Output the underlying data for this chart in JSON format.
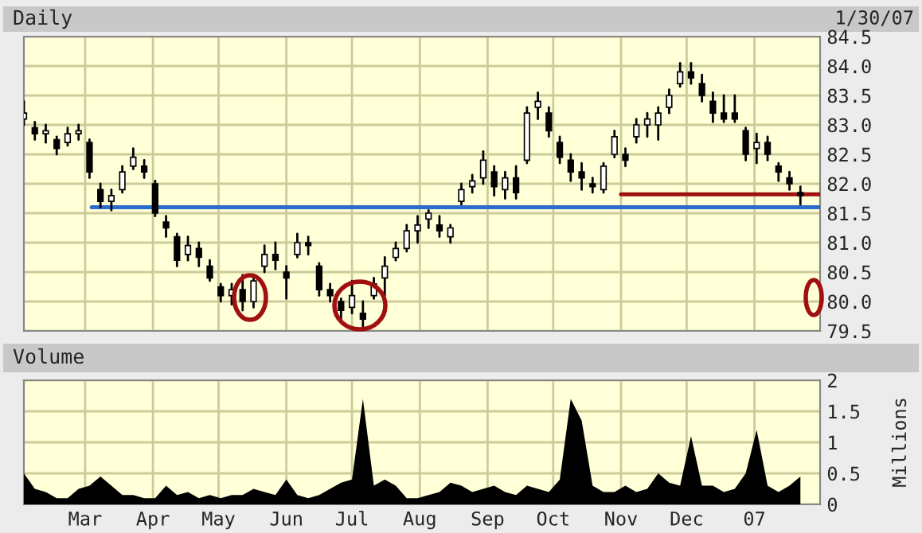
{
  "chart_data": [
    {
      "type": "candlestick",
      "title": "Daily",
      "annotations": [
        "1/30/07"
      ],
      "x": [
        "2006-02-01",
        "2006-02-06",
        "2006-02-11",
        "2006-02-16",
        "2006-02-21",
        "2006-02-26",
        "2006-03-03",
        "2006-03-08",
        "2006-03-13",
        "2006-03-18",
        "2006-03-23",
        "2006-03-28",
        "2006-04-02",
        "2006-04-07",
        "2006-04-12",
        "2006-04-17",
        "2006-04-22",
        "2006-04-27",
        "2006-05-02",
        "2006-05-07",
        "2006-05-12",
        "2006-05-17",
        "2006-05-22",
        "2006-05-27",
        "2006-06-01",
        "2006-06-06",
        "2006-06-11",
        "2006-06-16",
        "2006-06-21",
        "2006-06-26",
        "2006-07-01",
        "2006-07-06",
        "2006-07-11",
        "2006-07-16",
        "2006-07-21",
        "2006-07-26",
        "2006-07-31",
        "2006-08-05",
        "2006-08-10",
        "2006-08-15",
        "2006-08-20",
        "2006-08-25",
        "2006-08-30",
        "2006-09-04",
        "2006-09-09",
        "2006-09-14",
        "2006-09-19",
        "2006-09-24",
        "2006-09-29",
        "2006-10-04",
        "2006-10-09",
        "2006-10-14",
        "2006-10-19",
        "2006-10-24",
        "2006-10-29",
        "2006-11-03",
        "2006-11-08",
        "2006-11-13",
        "2006-11-18",
        "2006-11-23",
        "2006-11-28",
        "2006-12-03",
        "2006-12-08",
        "2006-12-13",
        "2006-12-18",
        "2006-12-23",
        "2006-12-28",
        "2007-01-02",
        "2007-01-07",
        "2007-01-12",
        "2007-01-17",
        "2007-01-22"
      ],
      "ohlc": [
        [
          83.1,
          83.4,
          83.0,
          83.2
        ],
        [
          82.95,
          83.05,
          82.75,
          82.85
        ],
        [
          82.85,
          83.0,
          82.7,
          82.9
        ],
        [
          82.75,
          82.8,
          82.5,
          82.6
        ],
        [
          82.7,
          82.95,
          82.65,
          82.85
        ],
        [
          82.85,
          83.0,
          82.75,
          82.9
        ],
        [
          82.7,
          82.75,
          82.1,
          82.2
        ],
        [
          81.9,
          82.0,
          81.6,
          81.7
        ],
        [
          81.7,
          81.9,
          81.55,
          81.8
        ],
        [
          81.9,
          82.3,
          81.85,
          82.2
        ],
        [
          82.3,
          82.6,
          82.25,
          82.45
        ],
        [
          82.3,
          82.4,
          82.1,
          82.2
        ],
        [
          82.0,
          82.05,
          81.45,
          81.5
        ],
        [
          81.35,
          81.45,
          81.1,
          81.25
        ],
        [
          81.1,
          81.15,
          80.6,
          80.7
        ],
        [
          80.8,
          81.1,
          80.7,
          80.95
        ],
        [
          80.9,
          81.0,
          80.6,
          80.75
        ],
        [
          80.6,
          80.7,
          80.35,
          80.4
        ],
        [
          80.25,
          80.3,
          80.0,
          80.1
        ],
        [
          80.1,
          80.3,
          79.95,
          80.2
        ],
        [
          80.2,
          80.45,
          79.85,
          80.0
        ],
        [
          80.0,
          80.45,
          79.9,
          80.35
        ],
        [
          80.6,
          80.95,
          80.5,
          80.8
        ],
        [
          80.8,
          81.0,
          80.55,
          80.7
        ],
        [
          80.5,
          80.6,
          80.05,
          80.4
        ],
        [
          80.8,
          81.15,
          80.75,
          81.0
        ],
        [
          81.0,
          81.1,
          80.8,
          80.95
        ],
        [
          80.6,
          80.65,
          80.1,
          80.2
        ],
        [
          80.2,
          80.3,
          80.0,
          80.1
        ],
        [
          80.0,
          80.05,
          79.7,
          79.85
        ],
        [
          79.9,
          80.35,
          79.8,
          80.1
        ],
        [
          79.8,
          80.0,
          79.55,
          79.7
        ],
        [
          80.1,
          80.4,
          80.05,
          80.3
        ],
        [
          80.4,
          80.75,
          80.1,
          80.6
        ],
        [
          80.75,
          81.0,
          80.7,
          80.9
        ],
        [
          80.9,
          81.3,
          80.85,
          81.2
        ],
        [
          81.2,
          81.45,
          81.0,
          81.3
        ],
        [
          81.4,
          81.55,
          81.25,
          81.5
        ],
        [
          81.3,
          81.45,
          81.1,
          81.2
        ],
        [
          81.1,
          81.3,
          81.0,
          81.25
        ],
        [
          81.7,
          82.0,
          81.65,
          81.9
        ],
        [
          81.95,
          82.15,
          81.85,
          82.05
        ],
        [
          82.1,
          82.55,
          82.0,
          82.4
        ],
        [
          82.2,
          82.3,
          81.8,
          81.95
        ],
        [
          81.9,
          82.2,
          81.75,
          82.1
        ],
        [
          82.1,
          82.3,
          81.75,
          81.85
        ],
        [
          82.4,
          83.3,
          82.35,
          83.2
        ],
        [
          83.3,
          83.55,
          83.1,
          83.4
        ],
        [
          83.2,
          83.3,
          82.8,
          82.9
        ],
        [
          82.7,
          82.8,
          82.35,
          82.45
        ],
        [
          82.4,
          82.5,
          82.05,
          82.2
        ],
        [
          82.2,
          82.35,
          81.9,
          82.1
        ],
        [
          82.0,
          82.1,
          81.85,
          81.95
        ],
        [
          81.9,
          82.35,
          81.85,
          82.3
        ],
        [
          82.5,
          82.9,
          82.45,
          82.8
        ],
        [
          82.5,
          82.6,
          82.3,
          82.4
        ],
        [
          82.8,
          83.1,
          82.7,
          83.0
        ],
        [
          83.0,
          83.2,
          82.8,
          83.1
        ],
        [
          83.0,
          83.3,
          82.75,
          83.2
        ],
        [
          83.3,
          83.6,
          83.2,
          83.5
        ],
        [
          83.7,
          84.05,
          83.65,
          83.9
        ],
        [
          83.9,
          84.05,
          83.7,
          83.8
        ],
        [
          83.7,
          83.85,
          83.4,
          83.5
        ],
        [
          83.4,
          83.55,
          83.05,
          83.2
        ],
        [
          83.2,
          83.5,
          83.05,
          83.1
        ],
        [
          83.2,
          83.5,
          83.05,
          83.1
        ],
        [
          82.9,
          82.95,
          82.4,
          82.5
        ],
        [
          82.6,
          82.85,
          82.35,
          82.7
        ],
        [
          82.7,
          82.8,
          82.4,
          82.5
        ],
        [
          82.3,
          82.35,
          82.05,
          82.2
        ],
        [
          82.1,
          82.2,
          81.9,
          82.0
        ],
        [
          81.85,
          81.95,
          81.65,
          81.8
        ]
      ],
      "series": [
        {
          "type": "line",
          "color": "#2a6ccc",
          "x": [
            "2006-03-04",
            "2007-01-31"
          ],
          "values": [
            81.6,
            81.6
          ]
        },
        {
          "type": "line",
          "color": "#a01010",
          "x": [
            "2006-11-01",
            "2007-01-31"
          ],
          "values": [
            81.82,
            81.82
          ]
        }
      ],
      "xlim": [
        "2006-02-01",
        "2007-01-31"
      ],
      "xticks": [
        {
          "value": "2006-03-01",
          "label": null
        },
        {
          "value": "2006-04-01",
          "label": null
        },
        {
          "value": "2006-05-01",
          "label": null
        },
        {
          "value": "2006-06-01",
          "label": null
        },
        {
          "value": "2006-07-01",
          "label": null
        },
        {
          "value": "2006-08-01",
          "label": null
        },
        {
          "value": "2006-09-01",
          "label": null
        },
        {
          "value": "2006-10-01",
          "label": null
        },
        {
          "value": "2006-11-01",
          "label": null
        },
        {
          "value": "2006-12-01",
          "label": null
        },
        {
          "value": "2007-01-01",
          "label": null
        }
      ],
      "ylim": [
        79.5,
        84.5
      ],
      "yticks": [
        {
          "value": 79.5,
          "label": "79.5"
        },
        {
          "value": 80.0,
          "label": "80.0"
        },
        {
          "value": 80.5,
          "label": "80.5"
        },
        {
          "value": 81.0,
          "label": "81.0"
        },
        {
          "value": 81.5,
          "label": "81.5"
        },
        {
          "value": 82.0,
          "label": "82.0"
        },
        {
          "value": 82.5,
          "label": "82.5"
        },
        {
          "value": 83.0,
          "label": "83.0"
        },
        {
          "value": 83.5,
          "label": "83.5"
        },
        {
          "value": 84.0,
          "label": "84.0"
        },
        {
          "value": 84.5,
          "label": "84.5"
        }
      ],
      "grid": true,
      "tick_labels": "y"
    },
    {
      "type": "area",
      "title": "Volume",
      "ylabel": "Millions",
      "color": "#000000",
      "x": [
        "2006-02-01",
        "2006-02-06",
        "2006-02-11",
        "2006-02-16",
        "2006-02-21",
        "2006-02-26",
        "2006-03-03",
        "2006-03-08",
        "2006-03-13",
        "2006-03-18",
        "2006-03-23",
        "2006-03-28",
        "2006-04-02",
        "2006-04-07",
        "2006-04-12",
        "2006-04-17",
        "2006-04-22",
        "2006-04-27",
        "2006-05-02",
        "2006-05-07",
        "2006-05-12",
        "2006-05-17",
        "2006-05-22",
        "2006-05-27",
        "2006-06-01",
        "2006-06-06",
        "2006-06-11",
        "2006-06-16",
        "2006-06-21",
        "2006-06-26",
        "2006-07-01",
        "2006-07-06",
        "2006-07-11",
        "2006-07-16",
        "2006-07-21",
        "2006-07-26",
        "2006-07-31",
        "2006-08-05",
        "2006-08-10",
        "2006-08-15",
        "2006-08-20",
        "2006-08-25",
        "2006-08-30",
        "2006-09-04",
        "2006-09-09",
        "2006-09-14",
        "2006-09-19",
        "2006-09-24",
        "2006-09-29",
        "2006-10-04",
        "2006-10-09",
        "2006-10-14",
        "2006-10-19",
        "2006-10-24",
        "2006-10-29",
        "2006-11-03",
        "2006-11-08",
        "2006-11-13",
        "2006-11-18",
        "2006-11-23",
        "2006-11-28",
        "2006-12-03",
        "2006-12-08",
        "2006-12-13",
        "2006-12-18",
        "2006-12-23",
        "2006-12-28",
        "2007-01-02",
        "2007-01-07",
        "2007-01-12",
        "2007-01-17",
        "2007-01-22"
      ],
      "values": [
        0.5,
        0.25,
        0.2,
        0.1,
        0.1,
        0.25,
        0.3,
        0.45,
        0.3,
        0.15,
        0.15,
        0.1,
        0.1,
        0.3,
        0.15,
        0.2,
        0.1,
        0.15,
        0.1,
        0.15,
        0.15,
        0.25,
        0.2,
        0.15,
        0.4,
        0.15,
        0.1,
        0.15,
        0.25,
        0.35,
        0.4,
        1.7,
        0.3,
        0.4,
        0.3,
        0.1,
        0.1,
        0.15,
        0.2,
        0.35,
        0.3,
        0.2,
        0.25,
        0.3,
        0.2,
        0.15,
        0.3,
        0.25,
        0.2,
        0.4,
        1.7,
        1.35,
        0.3,
        0.2,
        0.2,
        0.3,
        0.2,
        0.25,
        0.5,
        0.35,
        0.3,
        1.1,
        0.3,
        0.3,
        0.2,
        0.25,
        0.5,
        1.2,
        0.3,
        0.2,
        0.3,
        0.45
      ],
      "xlim": [
        "2006-02-01",
        "2007-01-31"
      ],
      "xticks": [
        {
          "value": "2006-03-01",
          "label": "Mar"
        },
        {
          "value": "2006-04-01",
          "label": "Apr"
        },
        {
          "value": "2006-05-01",
          "label": "May"
        },
        {
          "value": "2006-06-01",
          "label": "Jun"
        },
        {
          "value": "2006-07-01",
          "label": "Jul"
        },
        {
          "value": "2006-08-01",
          "label": "Aug"
        },
        {
          "value": "2006-09-01",
          "label": "Sep"
        },
        {
          "value": "2006-10-01",
          "label": "Oct"
        },
        {
          "value": "2006-11-01",
          "label": "Nov"
        },
        {
          "value": "2006-12-01",
          "label": "Dec"
        },
        {
          "value": "2007-01-01",
          "label": "07"
        }
      ],
      "ylim": [
        0,
        2
      ],
      "yticks": [
        0,
        0.5,
        1,
        1.5,
        2
      ],
      "grid": true
    }
  ]
}
